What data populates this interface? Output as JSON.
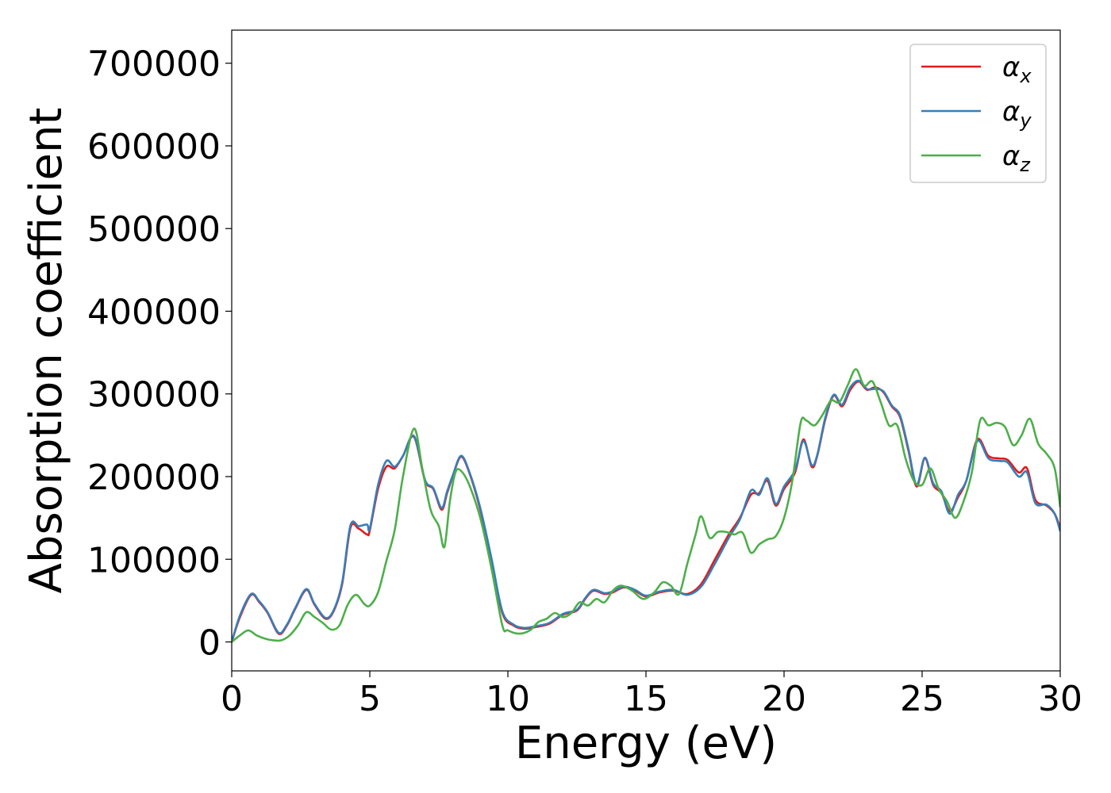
{
  "chart_data": {
    "type": "line",
    "xlabel": "Energy (eV)",
    "ylabel": "Absorption coefficient",
    "xlim": [
      0,
      30
    ],
    "ylim": [
      -35000,
      740000
    ],
    "xticks": [
      0,
      5,
      10,
      15,
      20,
      25,
      30
    ],
    "xtick_labels": [
      "0",
      "5",
      "10",
      "15",
      "20",
      "25",
      "30"
    ],
    "yticks": [
      0,
      100000,
      200000,
      300000,
      400000,
      500000,
      600000,
      700000
    ],
    "ytick_labels": [
      "0",
      "100000",
      "200000",
      "300000",
      "400000",
      "500000",
      "600000",
      "700000"
    ],
    "grid": false,
    "legend_position": "top-right",
    "series": [
      {
        "name": "αx",
        "legend_symbol": "α",
        "legend_subscript": "x",
        "color": "#e41a1c",
        "x": [
          0,
          0.3,
          0.7,
          1.0,
          1.3,
          1.7,
          2.0,
          2.3,
          2.7,
          3.0,
          3.4,
          3.7,
          4.0,
          4.3,
          4.6,
          4.9,
          5.0,
          5.3,
          5.6,
          5.9,
          6.2,
          6.6,
          7.0,
          7.3,
          7.6,
          7.8,
          8.0,
          8.3,
          8.6,
          9.0,
          9.4,
          9.8,
          10.2,
          10.6,
          11.0,
          11.5,
          12.0,
          12.5,
          12.8,
          13.1,
          13.5,
          13.8,
          14.2,
          14.6,
          15.0,
          15.5,
          16.0,
          16.5,
          17.0,
          17.5,
          18.0,
          18.4,
          18.8,
          19.1,
          19.4,
          19.7,
          20.0,
          20.4,
          20.7,
          21.0,
          21.2,
          21.5,
          21.8,
          22.1,
          22.4,
          22.7,
          23.0,
          23.3,
          23.6,
          23.9,
          24.2,
          24.5,
          24.8,
          25.1,
          25.4,
          25.7,
          26.0,
          26.3,
          26.6,
          27.0,
          27.4,
          27.8,
          28.1,
          28.5,
          28.8,
          29.1,
          29.5,
          29.8,
          30.0
        ],
        "values": [
          0,
          30000,
          57000,
          48000,
          35000,
          10000,
          20000,
          40000,
          63000,
          45000,
          28000,
          38000,
          70000,
          138000,
          137000,
          130000,
          135000,
          185000,
          212000,
          210000,
          225000,
          248000,
          195000,
          185000,
          160000,
          180000,
          200000,
          224000,
          205000,
          160000,
          100000,
          35000,
          20000,
          16000,
          18000,
          22000,
          33000,
          38000,
          52000,
          62000,
          58000,
          60000,
          66000,
          62000,
          55000,
          60000,
          62000,
          58000,
          70000,
          100000,
          130000,
          150000,
          178000,
          180000,
          195000,
          165000,
          185000,
          205000,
          245000,
          212000,
          225000,
          270000,
          298000,
          285000,
          305000,
          315000,
          305000,
          308000,
          302000,
          285000,
          272000,
          232000,
          188000,
          222000,
          190000,
          180000,
          158000,
          175000,
          195000,
          245000,
          225000,
          222000,
          220000,
          205000,
          210000,
          172000,
          165000,
          155000,
          138000
        ]
      },
      {
        "name": "αy",
        "legend_symbol": "α",
        "legend_subscript": "y",
        "color": "#377eb8",
        "x": [
          0,
          0.3,
          0.7,
          1.0,
          1.3,
          1.7,
          2.0,
          2.3,
          2.7,
          3.0,
          3.4,
          3.7,
          4.0,
          4.3,
          4.6,
          4.9,
          5.0,
          5.3,
          5.6,
          5.9,
          6.2,
          6.6,
          7.0,
          7.3,
          7.6,
          7.8,
          8.0,
          8.3,
          8.6,
          9.0,
          9.4,
          9.8,
          10.2,
          10.6,
          11.0,
          11.5,
          12.0,
          12.5,
          12.8,
          13.1,
          13.5,
          13.8,
          14.2,
          14.6,
          15.0,
          15.5,
          16.0,
          16.5,
          17.0,
          17.5,
          18.0,
          18.4,
          18.8,
          19.1,
          19.4,
          19.7,
          20.0,
          20.4,
          20.7,
          21.0,
          21.2,
          21.5,
          21.8,
          22.1,
          22.4,
          22.7,
          23.0,
          23.3,
          23.6,
          23.9,
          24.2,
          24.5,
          24.8,
          25.1,
          25.4,
          25.7,
          26.0,
          26.3,
          26.6,
          27.0,
          27.4,
          27.8,
          28.1,
          28.5,
          28.8,
          29.1,
          29.5,
          29.8,
          30.0
        ],
        "values": [
          0,
          32000,
          58000,
          49000,
          36000,
          11000,
          21000,
          41000,
          64000,
          46000,
          29000,
          39000,
          72000,
          141000,
          140000,
          142000,
          137000,
          190000,
          219000,
          212000,
          225000,
          249000,
          196000,
          186000,
          162000,
          182000,
          201000,
          225000,
          206000,
          162000,
          102000,
          37000,
          21000,
          17000,
          19000,
          23000,
          34000,
          39000,
          53000,
          63000,
          59000,
          61000,
          67000,
          63000,
          56000,
          61000,
          63000,
          57000,
          67000,
          95000,
          126000,
          148000,
          183000,
          178000,
          198000,
          167000,
          188000,
          208000,
          243000,
          214000,
          226000,
          272000,
          299000,
          287000,
          308000,
          316000,
          306000,
          306000,
          303000,
          286000,
          274000,
          234000,
          190000,
          223000,
          192000,
          182000,
          155000,
          178000,
          195000,
          243000,
          222000,
          219000,
          217000,
          200000,
          205000,
          168000,
          166000,
          155000,
          134000
        ]
      },
      {
        "name": "αz",
        "legend_symbol": "α",
        "legend_subscript": "z",
        "color": "#4daf4a",
        "x": [
          0,
          0.3,
          0.6,
          0.9,
          1.2,
          1.5,
          1.8,
          2.1,
          2.4,
          2.7,
          3.0,
          3.3,
          3.6,
          3.9,
          4.2,
          4.5,
          4.8,
          5.0,
          5.3,
          5.6,
          5.9,
          6.2,
          6.6,
          6.9,
          7.2,
          7.5,
          7.7,
          7.9,
          8.1,
          8.3,
          8.6,
          9.0,
          9.4,
          9.8,
          10.0,
          10.4,
          10.8,
          11.1,
          11.4,
          11.7,
          12.0,
          12.3,
          12.6,
          12.9,
          13.2,
          13.5,
          13.8,
          14.1,
          14.5,
          14.9,
          15.3,
          15.6,
          15.9,
          16.2,
          16.5,
          16.8,
          17.0,
          17.3,
          17.6,
          17.9,
          18.2,
          18.5,
          18.8,
          19.1,
          19.4,
          19.7,
          20.0,
          20.3,
          20.6,
          20.8,
          21.1,
          21.4,
          21.7,
          22.0,
          22.3,
          22.6,
          22.9,
          23.2,
          23.5,
          23.8,
          24.1,
          24.4,
          24.7,
          25.0,
          25.3,
          25.6,
          25.9,
          26.2,
          26.5,
          26.8,
          27.1,
          27.4,
          27.7,
          28.0,
          28.3,
          28.6,
          28.9,
          29.2,
          29.5,
          29.8,
          30.0
        ],
        "values": [
          0,
          8000,
          14000,
          8000,
          4000,
          2000,
          2000,
          8000,
          20000,
          36000,
          30000,
          23000,
          15000,
          20000,
          45000,
          57000,
          46000,
          44000,
          60000,
          98000,
          135000,
          200000,
          258000,
          210000,
          160000,
          140000,
          115000,
          170000,
          205000,
          207000,
          190000,
          150000,
          90000,
          20000,
          14000,
          10000,
          14000,
          24000,
          28000,
          35000,
          30000,
          35000,
          48000,
          44000,
          52000,
          48000,
          62000,
          68000,
          62000,
          52000,
          60000,
          72000,
          68000,
          58000,
          95000,
          130000,
          152000,
          126000,
          133000,
          133000,
          130000,
          132000,
          108000,
          118000,
          124000,
          128000,
          150000,
          195000,
          265000,
          268000,
          262000,
          275000,
          292000,
          290000,
          310000,
          330000,
          310000,
          315000,
          290000,
          262000,
          262000,
          222000,
          195000,
          190000,
          210000,
          185000,
          170000,
          150000,
          170000,
          205000,
          268000,
          262000,
          265000,
          260000,
          238000,
          250000,
          270000,
          240000,
          228000,
          210000,
          163000
        ]
      }
    ]
  }
}
